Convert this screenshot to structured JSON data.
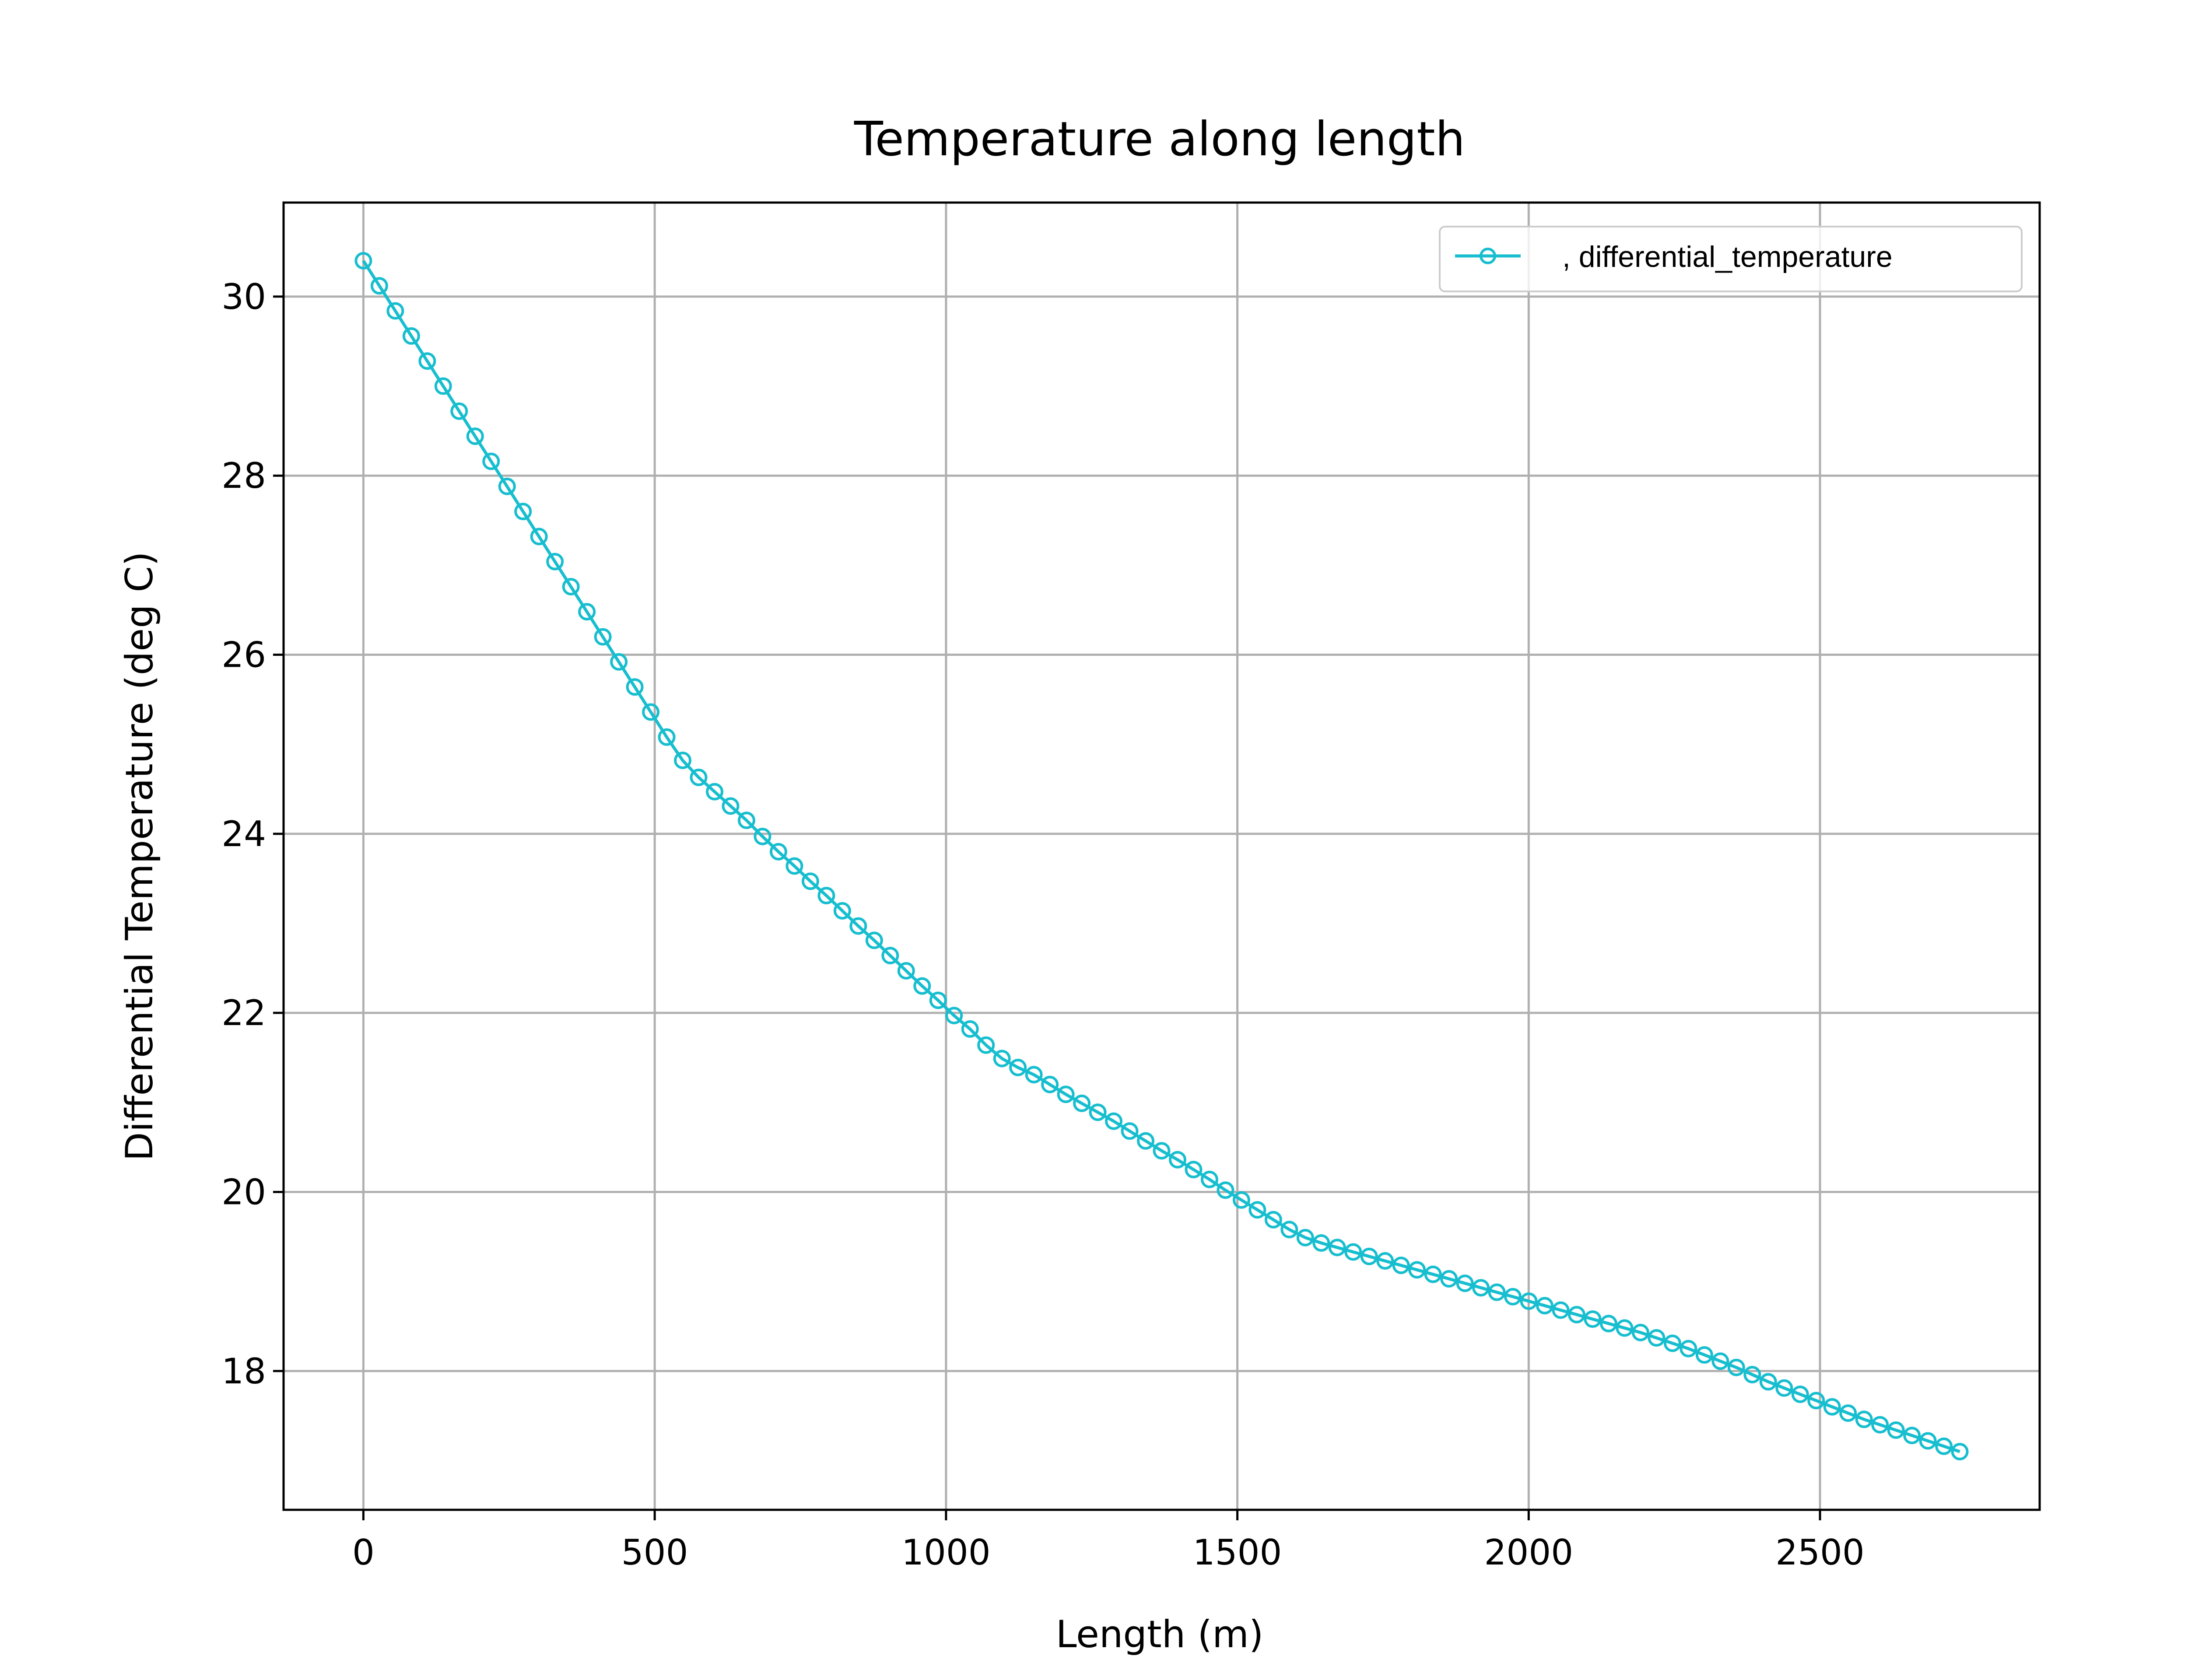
{
  "chart_data": {
    "type": "line",
    "title": "Temperature along length",
    "xlabel": "Length (m)",
    "ylabel": "Differential Temperature (deg C)",
    "xlim": [
      -137,
      2877
    ],
    "ylim": [
      16.45,
      31.05
    ],
    "x_ticks": [
      0,
      500,
      1000,
      1500,
      2000,
      2500
    ],
    "y_ticks": [
      18,
      20,
      22,
      24,
      26,
      28,
      30
    ],
    "x_tick_labels": [
      "0",
      "500",
      "1000",
      "1500",
      "2000",
      "2500"
    ],
    "y_tick_labels": [
      "18",
      "20",
      "22",
      "24",
      "26",
      "28",
      "30"
    ],
    "grid": true,
    "legend_position": "upper right",
    "colors": {
      "series": "#17becf",
      "grid": "#b0b0b0",
      "axes": "#000000"
    },
    "series": [
      {
        "name": ", differential_temperature",
        "marker": "circle-open",
        "x": [
          0,
          27.4,
          54.8,
          82.2,
          109.6,
          137.0,
          164.4,
          191.8,
          219.2,
          246.6,
          274.0,
          301.4,
          328.8,
          356.2,
          383.6,
          411.0,
          438.4,
          465.8,
          493.2,
          520.6,
          548.0,
          575.4,
          602.8,
          630.2,
          657.6,
          685.0,
          712.4,
          739.8,
          767.2,
          794.6,
          822.0,
          849.4,
          876.8,
          904.2,
          931.6,
          959.0,
          986.4,
          1013.8,
          1041.2,
          1068.6,
          1096.0,
          1123.4,
          1150.8,
          1178.2,
          1205.6,
          1233.0,
          1260.4,
          1287.8,
          1315.2,
          1342.6,
          1370.0,
          1397.4,
          1424.8,
          1452.2,
          1479.6,
          1507.0,
          1534.4,
          1561.8,
          1589.2,
          1616.6,
          1644.0,
          1671.4,
          1698.8,
          1726.2,
          1753.6,
          1781.0,
          1808.4,
          1835.8,
          1863.2,
          1890.6,
          1918.0,
          1945.4,
          1972.8,
          2000.2,
          2027.6,
          2055.0,
          2082.4,
          2109.8,
          2137.2,
          2164.6,
          2192.0,
          2219.4,
          2246.8,
          2274.2,
          2301.6,
          2329.0,
          2356.4,
          2383.8,
          2411.2,
          2438.6,
          2466.0,
          2493.4,
          2520.8,
          2548.2,
          2575.6,
          2603.0,
          2630.4,
          2657.8,
          2685.2,
          2712.6,
          2740.0
        ],
        "y": [
          30.4,
          30.12,
          29.84,
          29.56,
          29.28,
          29.0,
          28.72,
          28.44,
          28.16,
          27.88,
          27.6,
          27.32,
          27.04,
          26.76,
          26.48,
          26.2,
          25.92,
          25.64,
          25.36,
          25.08,
          24.82,
          24.63,
          24.47,
          24.31,
          24.15,
          23.97,
          23.8,
          23.64,
          23.47,
          23.31,
          23.14,
          22.97,
          22.81,
          22.64,
          22.47,
          22.3,
          22.14,
          21.97,
          21.82,
          21.64,
          21.49,
          21.39,
          21.31,
          21.2,
          21.09,
          20.99,
          20.89,
          20.79,
          20.68,
          20.57,
          20.46,
          20.36,
          20.25,
          20.14,
          20.02,
          19.91,
          19.8,
          19.69,
          19.58,
          19.49,
          19.43,
          19.38,
          19.33,
          19.28,
          19.23,
          19.18,
          19.13,
          19.08,
          19.03,
          18.98,
          18.93,
          18.88,
          18.83,
          18.78,
          18.73,
          18.68,
          18.63,
          18.58,
          18.53,
          18.48,
          18.43,
          18.37,
          18.31,
          18.25,
          18.18,
          18.11,
          18.04,
          17.96,
          17.88,
          17.81,
          17.74,
          17.67,
          17.6,
          17.53,
          17.46,
          17.4,
          17.34,
          17.28,
          17.22,
          17.16,
          17.1
        ]
      }
    ]
  }
}
